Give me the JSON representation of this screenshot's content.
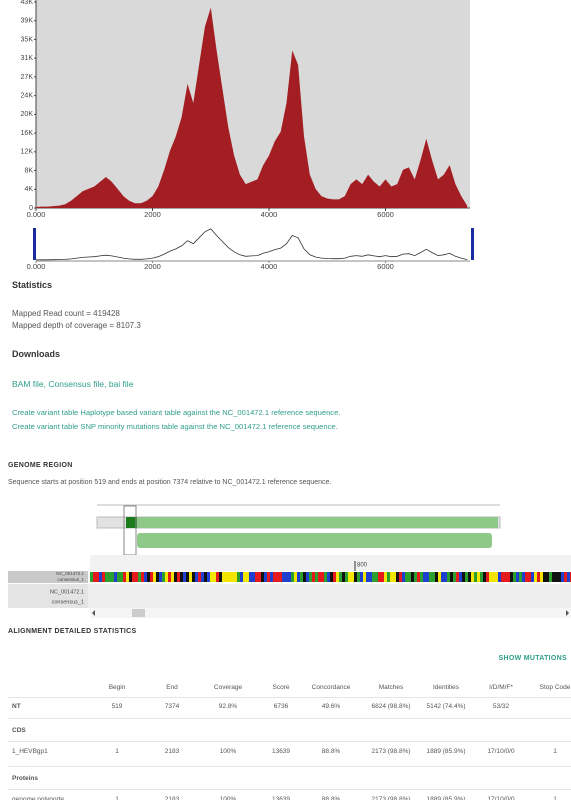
{
  "chart_data": {
    "type": "area",
    "color": "#a31e22",
    "x": [
      0,
      100,
      200,
      300,
      400,
      500,
      600,
      700,
      800,
      900,
      1000,
      1100,
      1200,
      1300,
      1400,
      1500,
      1600,
      1700,
      1800,
      1900,
      2000,
      2100,
      2200,
      2300,
      2400,
      2500,
      2600,
      2700,
      2800,
      2900,
      3000,
      3100,
      3200,
      3300,
      3400,
      3500,
      3600,
      3700,
      3800,
      3900,
      4000,
      4100,
      4200,
      4300,
      4400,
      4500,
      4600,
      4700,
      4800,
      4900,
      5000,
      5100,
      5200,
      5300,
      5400,
      5500,
      5600,
      5700,
      5800,
      5900,
      6000,
      6100,
      6200,
      6300,
      6400,
      6500,
      6600,
      6700,
      6800,
      6900,
      7000,
      7100,
      7200,
      7300,
      7400
    ],
    "values": [
      200,
      300,
      300,
      400,
      500,
      800,
      1500,
      2500,
      3500,
      4000,
      4500,
      5500,
      6500,
      5500,
      4000,
      2500,
      1500,
      1000,
      1000,
      1500,
      2500,
      4500,
      8000,
      12000,
      15000,
      19000,
      26000,
      22000,
      30000,
      38000,
      42000,
      33000,
      25000,
      17000,
      11000,
      7000,
      5000,
      5500,
      6000,
      9000,
      11000,
      14000,
      16000,
      22000,
      33000,
      30000,
      15000,
      7000,
      4000,
      2500,
      2000,
      1800,
      1800,
      2500,
      5000,
      6000,
      5000,
      7000,
      5500,
      4500,
      6000,
      4500,
      5000,
      8000,
      8500,
      6000,
      10000,
      14500,
      10000,
      6000,
      7000,
      9000,
      5000,
      2500,
      500
    ],
    "xlim": [
      0,
      7450
    ],
    "ylim": [
      0,
      43175
    ],
    "xticks": [
      {
        "value": 0,
        "label": "0.000"
      },
      2000,
      4000,
      6000
    ],
    "yticks": [
      0,
      {
        "value": 3925,
        "label": "4K"
      },
      {
        "value": 7850,
        "label": "8K"
      },
      {
        "value": 11775,
        "label": "12K"
      },
      {
        "value": 15700,
        "label": "16K"
      },
      {
        "value": 19625,
        "label": "20K"
      },
      {
        "value": 23550,
        "label": "24K"
      },
      {
        "value": 27475,
        "label": "27K"
      },
      {
        "value": 31400,
        "label": "31K"
      },
      {
        "value": 35325,
        "label": "35K"
      },
      {
        "value": 39250,
        "label": "39K"
      },
      {
        "value": 43175,
        "label": "43K"
      }
    ]
  },
  "statistics": {
    "heading": "Statistics",
    "lines": [
      "Mapped Read count = 419428",
      "Mapped depth of coverage = 8107.3"
    ]
  },
  "downloads": {
    "heading": "Downloads",
    "files": "BAM file, Consensus file, bai file",
    "variant_tables": [
      "Create variant table Haplotype based variant table against the NC_001472.1 reference sequence.",
      "Create variant table SNP minority mutations table against the NC_001472.1 reference sequence."
    ]
  },
  "genome_region": {
    "heading": "GENOME REGION",
    "description": "Sequence starts at position 519 and ends at position 7374 relative to NC_001472.1 reference sequence.",
    "ruler_label": "800",
    "tracks": [
      "NC_001472.1",
      "consensus_1"
    ]
  },
  "alignment": {
    "heading": "ALIGNMENT DETAILED STATISTICS",
    "action": "SHOW MUTATIONS",
    "columns": [
      "Begin",
      "End",
      "Coverage",
      "Score",
      "Concordance",
      "Matches",
      "Identities",
      "I/D/M/F*",
      "Stop Code"
    ],
    "nt_row": [
      "NT",
      "519",
      "7374",
      "92.8%",
      "6736",
      "49.6%",
      "6824 (98.8%)",
      "5142 (74.4%)",
      "53/32"
    ],
    "groups": [
      {
        "title": "CDS",
        "rows": [
          [
            "1_HEVBgp1",
            "1",
            "2183",
            "100%",
            "13639",
            "88.8%",
            "2173 (98.8%)",
            "1889 (85.9%)",
            "17/10/0/0",
            "1"
          ]
        ]
      },
      {
        "title": "Proteins",
        "rows": [
          [
            "genome polyporte...",
            "1",
            "2183",
            "100%",
            "13639",
            "88.8%",
            "2173 (98.8%)",
            "1889 (85.9%)",
            "17/10/0/0",
            "1"
          ]
        ]
      }
    ]
  }
}
